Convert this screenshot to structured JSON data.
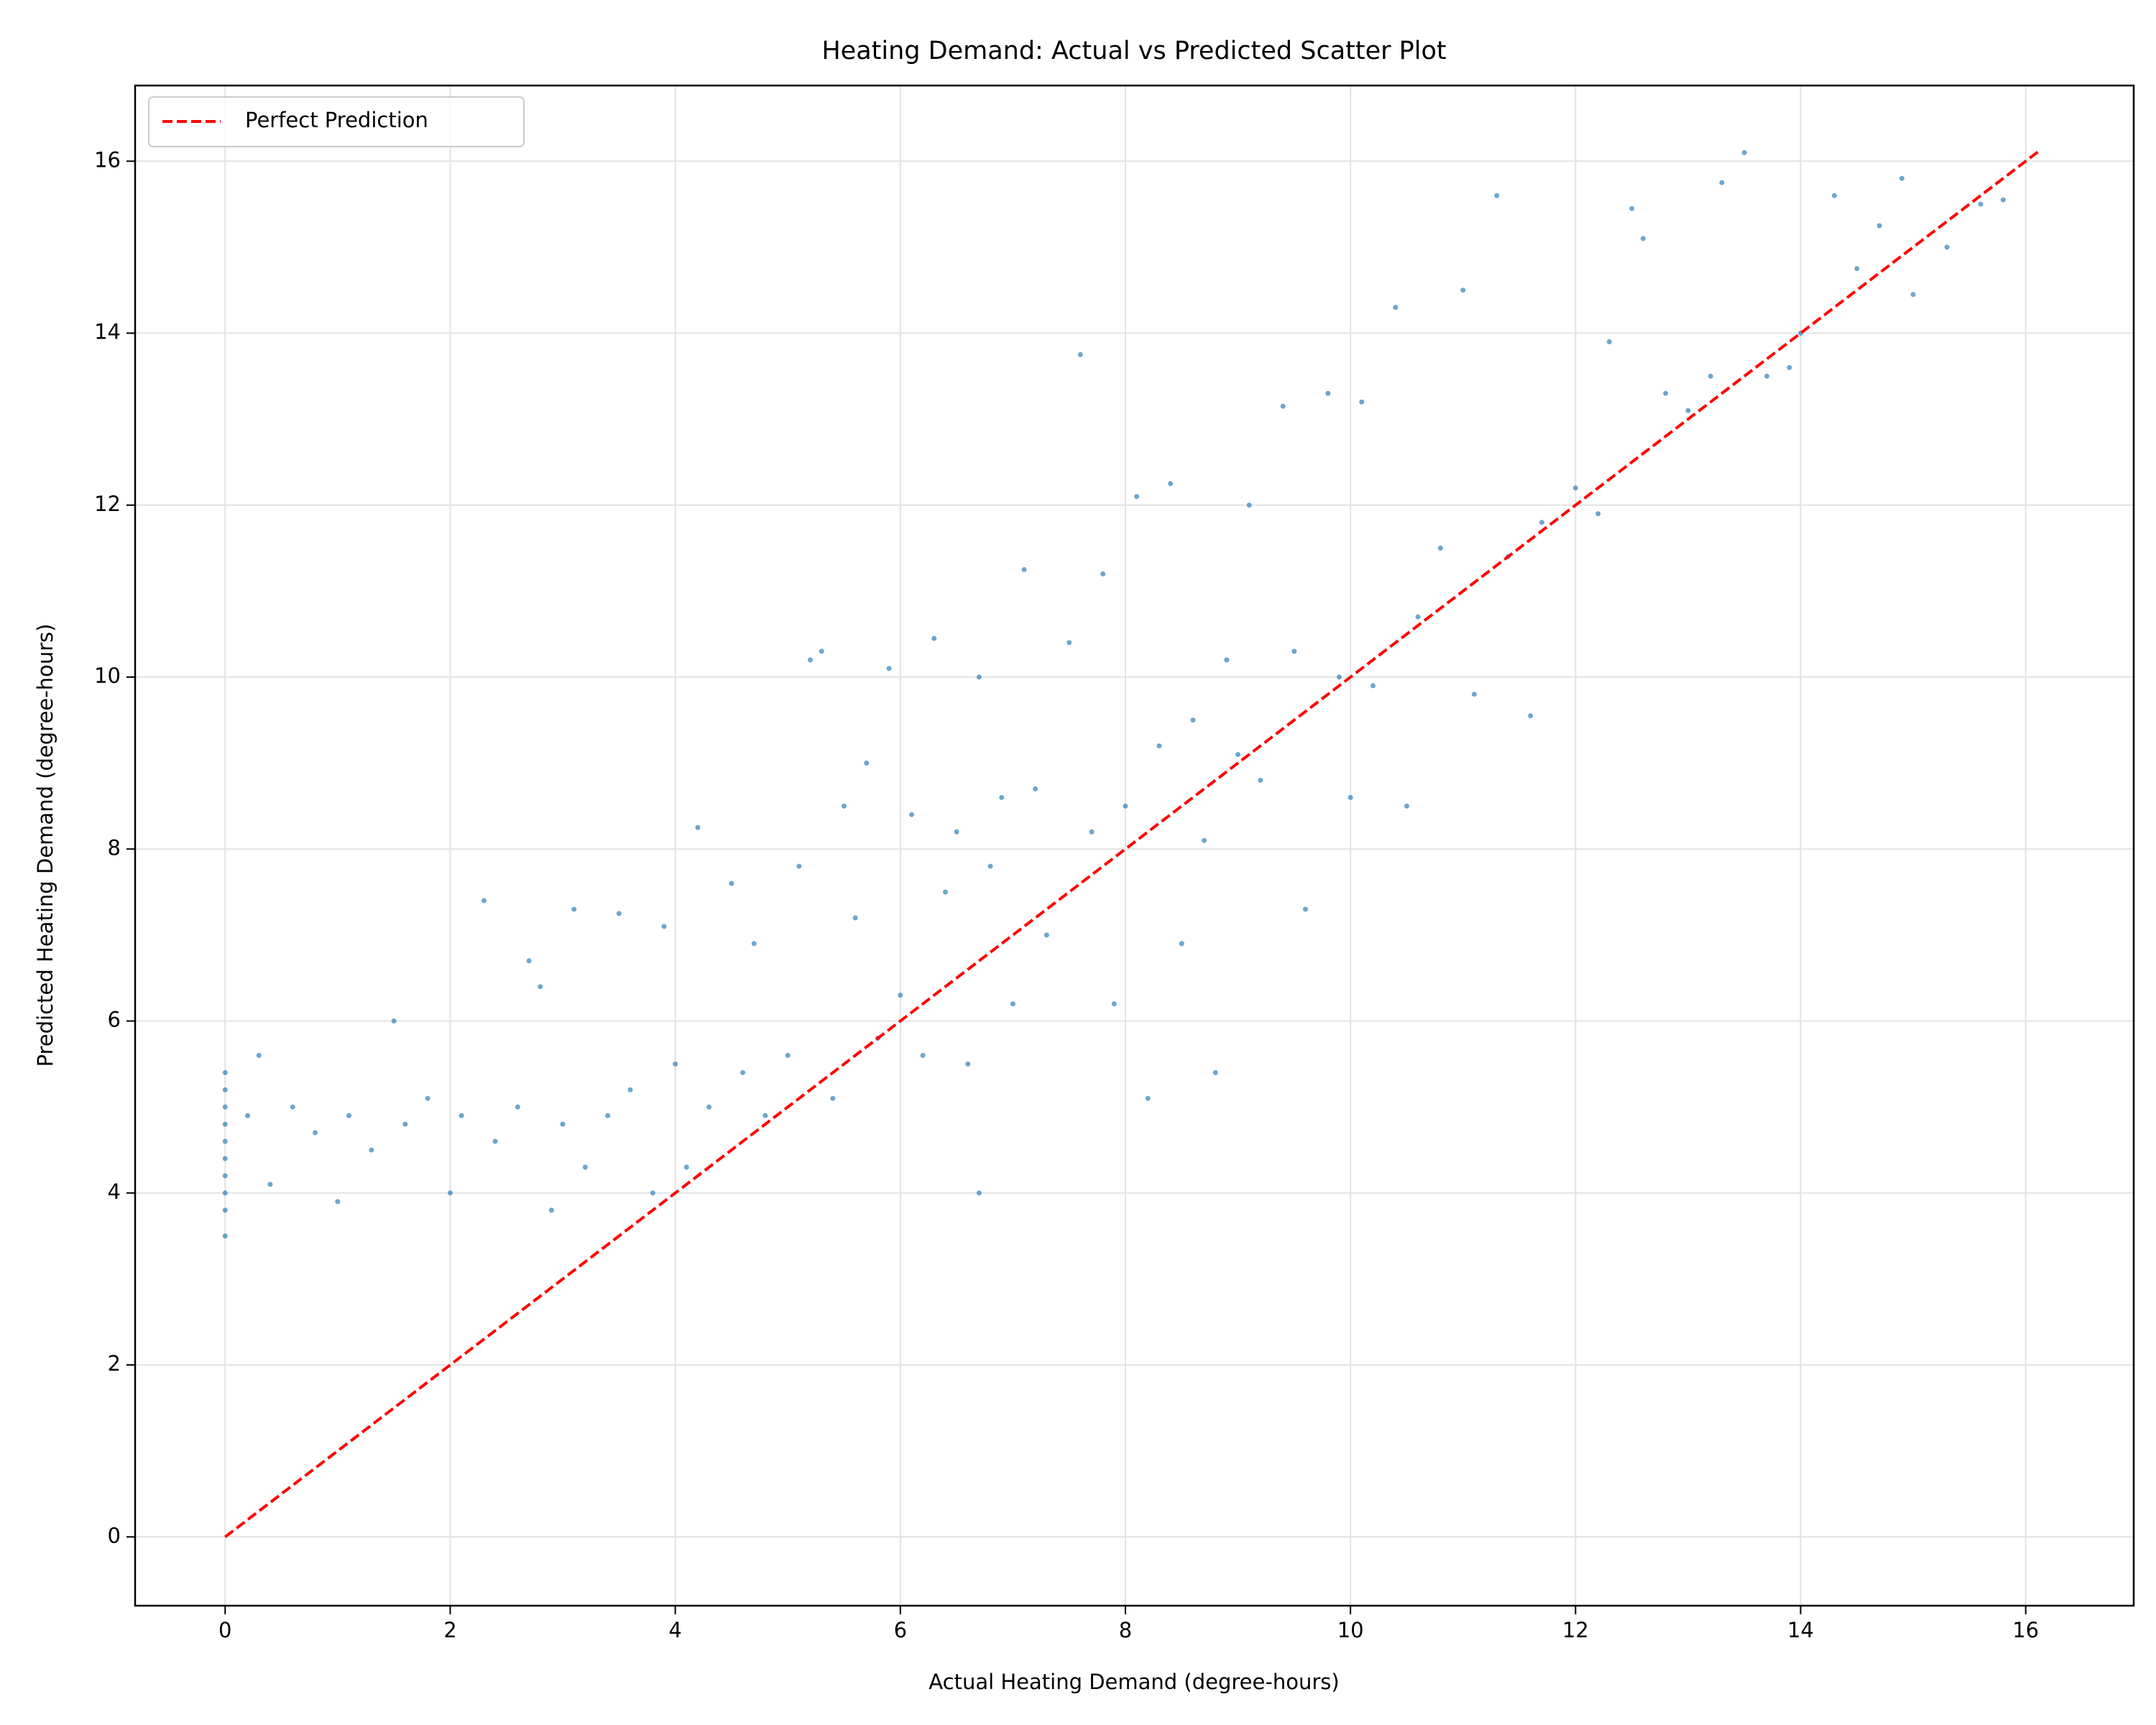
{
  "chart_data": {
    "type": "scatter",
    "title": "Heating Demand: Actual vs Predicted Scatter Plot",
    "xlabel": "Actual Heating Demand (degree-hours)",
    "ylabel": "Predicted Heating Demand (degree-hours)",
    "xlim": [
      -0.8,
      16.96
    ],
    "ylim": [
      -0.8,
      16.88
    ],
    "xticks": [
      0,
      2,
      4,
      6,
      8,
      10,
      12,
      14,
      16
    ],
    "yticks": [
      0,
      2,
      4,
      6,
      8,
      10,
      12,
      14,
      16
    ],
    "grid": true,
    "legend": "upper left",
    "series": [
      {
        "type": "scatter",
        "color": "#1f77b4",
        "x": [
          0,
          0,
          0,
          0,
          0,
          0,
          0,
          0,
          0,
          0,
          0.2,
          0.3,
          0.4,
          0.6,
          0.8,
          1.0,
          1.1,
          1.3,
          1.5,
          1.6,
          1.8,
          2.0,
          2.1,
          2.3,
          2.4,
          2.6,
          2.7,
          2.8,
          2.9,
          3.0,
          3.1,
          3.2,
          3.4,
          3.5,
          3.6,
          3.8,
          3.9,
          4.0,
          4.1,
          4.2,
          4.3,
          4.5,
          4.6,
          4.7,
          4.8,
          5.0,
          5.1,
          5.2,
          5.3,
          5.4,
          5.5,
          5.6,
          5.7,
          5.8,
          5.9,
          6.0,
          6.1,
          6.2,
          6.3,
          6.4,
          6.5,
          6.6,
          6.7,
          6.7,
          6.8,
          6.9,
          7.0,
          7.1,
          7.2,
          7.3,
          7.5,
          7.6,
          7.7,
          7.8,
          7.9,
          8.0,
          8.1,
          8.2,
          8.3,
          8.4,
          8.5,
          8.6,
          8.7,
          8.8,
          8.9,
          9.0,
          9.1,
          9.2,
          9.4,
          9.5,
          9.6,
          9.8,
          9.9,
          10.0,
          10.1,
          10.2,
          10.4,
          10.5,
          10.6,
          10.8,
          11.0,
          11.1,
          11.3,
          11.4,
          11.6,
          11.7,
          12.0,
          12.2,
          12.3,
          12.5,
          12.6,
          12.8,
          13.0,
          13.2,
          13.3,
          13.5,
          13.7,
          13.9,
          14.0,
          14.3,
          14.5,
          14.7,
          14.9,
          15.0,
          15.3,
          15.6,
          15.8
        ],
        "values": [
          3.5,
          3.8,
          4.0,
          4.2,
          4.4,
          4.6,
          4.8,
          5.0,
          5.2,
          5.4,
          4.9,
          5.6,
          4.1,
          5.0,
          4.7,
          3.9,
          4.9,
          4.5,
          6.0,
          4.8,
          5.1,
          4.0,
          4.9,
          7.4,
          4.6,
          5.0,
          6.7,
          6.4,
          3.8,
          4.8,
          7.3,
          4.3,
          4.9,
          7.25,
          5.2,
          4.0,
          7.1,
          5.5,
          4.3,
          8.25,
          5.0,
          7.6,
          5.4,
          6.9,
          4.9,
          5.6,
          7.8,
          10.2,
          10.3,
          5.1,
          8.5,
          7.2,
          9.0,
          5.8,
          10.1,
          6.3,
          8.4,
          5.6,
          10.45,
          7.5,
          8.2,
          5.5,
          10.0,
          4.0,
          7.8,
          8.6,
          6.2,
          11.25,
          8.7,
          7.0,
          10.4,
          13.75,
          8.2,
          11.2,
          6.2,
          8.5,
          12.1,
          5.1,
          9.2,
          12.25,
          6.9,
          9.5,
          8.1,
          5.4,
          10.2,
          9.1,
          12.0,
          8.8,
          13.15,
          10.3,
          7.3,
          13.3,
          10.0,
          8.6,
          13.2,
          9.9,
          14.3,
          8.5,
          10.7,
          11.5,
          14.5,
          9.8,
          15.6,
          11.4,
          9.55,
          11.8,
          12.2,
          11.9,
          13.9,
          15.45,
          15.1,
          13.3,
          13.1,
          13.5,
          15.75,
          16.1,
          13.5,
          13.6,
          14.0,
          15.6,
          14.75,
          15.25,
          15.8,
          14.45,
          15.0,
          15.5,
          15.55
        ]
      },
      {
        "type": "line",
        "name": "Perfect Prediction",
        "color": "#ff0000",
        "dashed": true,
        "x": [
          0,
          16.13
        ],
        "values": [
          0,
          16.13
        ]
      }
    ]
  }
}
